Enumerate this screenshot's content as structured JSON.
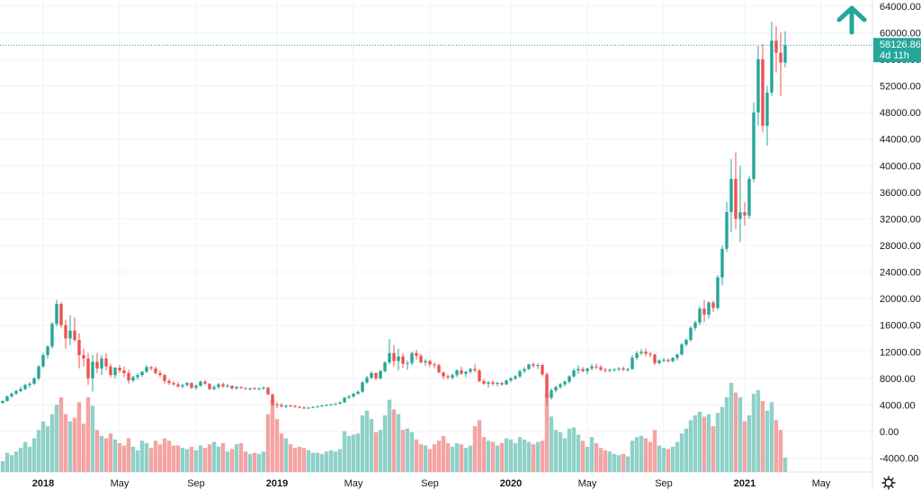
{
  "chart_data": {
    "type": "candlestick",
    "colors": {
      "up": "#26a69a",
      "down": "#ef5350",
      "volume_up": "#8fd1c9",
      "volume_down": "#f5a3a3",
      "grid": "#f0f3fa",
      "axis_text": "#131722",
      "last_price_line": "#26a69a"
    },
    "grid": true,
    "y_axis": {
      "position": "right",
      "ylim": [
        -5000,
        66000
      ],
      "ticks": [
        "64000.00",
        "60000.00",
        "56000.00",
        "52000.00",
        "48000.00",
        "44000.00",
        "40000.00",
        "36000.00",
        "32000.00",
        "28000.00",
        "24000.00",
        "20000.00",
        "16000.00",
        "12000.00",
        "8000.00",
        "4000.00",
        "0.00",
        "-4000.00"
      ]
    },
    "x_axis": {
      "ticks": [
        {
          "label": "2018",
          "index": 9,
          "bold": true
        },
        {
          "label": "May",
          "index": 26,
          "bold": false
        },
        {
          "label": "Sep",
          "index": 43,
          "bold": false
        },
        {
          "label": "2019",
          "index": 61,
          "bold": true
        },
        {
          "label": "May",
          "index": 78,
          "bold": false
        },
        {
          "label": "Sep",
          "index": 95,
          "bold": false
        },
        {
          "label": "2020",
          "index": 113,
          "bold": true
        },
        {
          "label": "May",
          "index": 130,
          "bold": false
        },
        {
          "label": "Sep",
          "index": 147,
          "bold": false
        },
        {
          "label": "2021",
          "index": 165,
          "bold": true
        },
        {
          "label": "May",
          "index": 182,
          "bold": false
        }
      ]
    },
    "last_price": {
      "value": 58126.86,
      "label": "58126.86",
      "countdown": "4d 11h"
    },
    "candles": [
      [
        4300,
        4700,
        4200,
        4600,
        900
      ],
      [
        4600,
        5400,
        4500,
        5300,
        1600
      ],
      [
        5300,
        5900,
        5100,
        5700,
        1400
      ],
      [
        5700,
        6300,
        5500,
        6100,
        1700
      ],
      [
        6100,
        6800,
        5900,
        6400,
        2000
      ],
      [
        6400,
        7200,
        6200,
        7000,
        2500
      ],
      [
        7000,
        7400,
        6600,
        7200,
        2100
      ],
      [
        7200,
        8200,
        7000,
        8000,
        2800
      ],
      [
        8000,
        10000,
        7700,
        9800,
        3500
      ],
      [
        9800,
        11800,
        9500,
        11500,
        4200
      ],
      [
        11500,
        13000,
        11000,
        12800,
        3800
      ],
      [
        12800,
        16500,
        12500,
        16200,
        4800
      ],
      [
        16200,
        19800,
        15800,
        19200,
        5600
      ],
      [
        19200,
        19500,
        15600,
        16000,
        6200
      ],
      [
        16000,
        16800,
        12500,
        14000,
        4800
      ],
      [
        14000,
        17500,
        13000,
        15200,
        4200
      ],
      [
        15200,
        17200,
        13500,
        13800,
        4500
      ],
      [
        13800,
        14800,
        9500,
        11500,
        5800
      ],
      [
        11500,
        12500,
        9800,
        11000,
        4000
      ],
      [
        11000,
        11800,
        7000,
        8000,
        6200
      ],
      [
        8000,
        11500,
        6000,
        10500,
        5500
      ],
      [
        10500,
        11800,
        8800,
        9500,
        3500
      ],
      [
        9500,
        11500,
        8500,
        11000,
        3000
      ],
      [
        11000,
        11800,
        9200,
        9800,
        2800
      ],
      [
        9800,
        10200,
        8200,
        8500,
        3200
      ],
      [
        8500,
        9700,
        8000,
        9600,
        2700
      ],
      [
        9600,
        10000,
        8800,
        9200,
        2400
      ],
      [
        9200,
        9800,
        8200,
        8800,
        2200
      ],
      [
        8800,
        9300,
        7200,
        7700,
        2800
      ],
      [
        7700,
        8400,
        7400,
        8200,
        2100
      ],
      [
        8200,
        8800,
        7800,
        8500,
        1800
      ],
      [
        8500,
        9100,
        8200,
        9000,
        2600
      ],
      [
        9000,
        10000,
        8800,
        9700,
        2400
      ],
      [
        9700,
        9900,
        9200,
        9500,
        2000
      ],
      [
        9500,
        9800,
        8600,
        8800,
        2600
      ],
      [
        8800,
        9200,
        8200,
        8500,
        2300
      ],
      [
        8500,
        8700,
        7200,
        7600,
        2800
      ],
      [
        7600,
        7900,
        7000,
        7300,
        2600
      ],
      [
        7300,
        7600,
        6900,
        7100,
        2200
      ],
      [
        7100,
        7500,
        6600,
        6800,
        2200
      ],
      [
        6800,
        7200,
        6500,
        7000,
        2000
      ],
      [
        7000,
        7500,
        6800,
        7300,
        1900
      ],
      [
        7300,
        7400,
        6400,
        6600,
        2100
      ],
      [
        6600,
        7100,
        6300,
        6900,
        1800
      ],
      [
        6900,
        7700,
        6700,
        7500,
        2200
      ],
      [
        7500,
        7800,
        7000,
        7200,
        2000
      ],
      [
        7200,
        7300,
        6200,
        6400,
        2300
      ],
      [
        6400,
        7000,
        6200,
        6700,
        2500
      ],
      [
        6700,
        7300,
        6400,
        7100,
        2100
      ],
      [
        7100,
        7400,
        6600,
        6800,
        2400
      ],
      [
        6800,
        7200,
        6600,
        6900,
        1700
      ],
      [
        6900,
        7000,
        6300,
        6500,
        1900
      ],
      [
        6500,
        6900,
        6300,
        6700,
        2300
      ],
      [
        6700,
        6800,
        6400,
        6550,
        2400
      ],
      [
        6550,
        6700,
        6300,
        6450,
        1700
      ],
      [
        6450,
        6600,
        6200,
        6500,
        1500
      ],
      [
        6500,
        6700,
        6300,
        6400,
        1600
      ],
      [
        6400,
        6600,
        6200,
        6500,
        1500
      ],
      [
        6500,
        6800,
        6300,
        6600,
        1700
      ],
      [
        6600,
        6700,
        5500,
        5600,
        4800
      ],
      [
        5600,
        5700,
        3800,
        4100,
        6000
      ],
      [
        4100,
        4400,
        3500,
        4000,
        4400
      ],
      [
        4000,
        4300,
        3600,
        3800,
        3200
      ],
      [
        3800,
        4100,
        3500,
        3900,
        2800
      ],
      [
        3900,
        4100,
        3700,
        3850,
        2300
      ],
      [
        3850,
        4000,
        3600,
        3700,
        2000
      ],
      [
        3700,
        3900,
        3500,
        3600,
        2100
      ],
      [
        3600,
        3800,
        3400,
        3500,
        2000
      ],
      [
        3500,
        3700,
        3400,
        3600,
        1800
      ],
      [
        3600,
        3800,
        3500,
        3700,
        1600
      ],
      [
        3700,
        3900,
        3600,
        3800,
        1600
      ],
      [
        3800,
        4000,
        3700,
        3950,
        1500
      ],
      [
        3950,
        4100,
        3800,
        4050,
        1700
      ],
      [
        4050,
        4200,
        3900,
        4100,
        1800
      ],
      [
        4100,
        4300,
        4000,
        4200,
        1700
      ],
      [
        4200,
        4500,
        4100,
        4400,
        1900
      ],
      [
        4400,
        5200,
        4300,
        5100,
        3400
      ],
      [
        5100,
        5500,
        4900,
        5300,
        3000
      ],
      [
        5300,
        5800,
        5100,
        5700,
        3100
      ],
      [
        5700,
        6200,
        5500,
        6000,
        3200
      ],
      [
        6000,
        7600,
        5800,
        7400,
        4700
      ],
      [
        7400,
        8400,
        7200,
        8100,
        5100
      ],
      [
        8100,
        9100,
        7900,
        8800,
        4400
      ],
      [
        8800,
        8900,
        7700,
        8000,
        3300
      ],
      [
        8000,
        9300,
        7800,
        9100,
        3500
      ],
      [
        9100,
        10600,
        8900,
        10400,
        4700
      ],
      [
        10400,
        13900,
        10100,
        11800,
        6000
      ],
      [
        11800,
        13000,
        9800,
        10600,
        5200
      ],
      [
        10600,
        12500,
        9200,
        11300,
        4800
      ],
      [
        11300,
        11800,
        9600,
        10200,
        3500
      ],
      [
        10200,
        10700,
        9300,
        10300,
        3600
      ],
      [
        10300,
        12000,
        10000,
        11800,
        3300
      ],
      [
        11800,
        12300,
        10800,
        11400,
        2700
      ],
      [
        11400,
        11700,
        10200,
        10400,
        2300
      ],
      [
        10400,
        10900,
        9900,
        10600,
        2200
      ],
      [
        10600,
        10800,
        9700,
        10100,
        1900
      ],
      [
        10100,
        10400,
        9500,
        10000,
        2300
      ],
      [
        10000,
        10200,
        8800,
        8900,
        2600
      ],
      [
        8900,
        9000,
        7900,
        8300,
        3000
      ],
      [
        8300,
        8600,
        7900,
        8100,
        2400
      ],
      [
        8100,
        8700,
        7800,
        8500,
        2100
      ],
      [
        8500,
        9400,
        8200,
        9200,
        2400
      ],
      [
        9200,
        9800,
        8500,
        8700,
        2300
      ],
      [
        8700,
        9100,
        8200,
        9000,
        2000
      ],
      [
        9000,
        9600,
        8700,
        9400,
        2200
      ],
      [
        9400,
        10200,
        8900,
        9200,
        3800
      ],
      [
        9200,
        9400,
        7400,
        7600,
        4300
      ],
      [
        7600,
        7900,
        7000,
        7200,
        2900
      ],
      [
        7200,
        7600,
        6600,
        7400,
        2600
      ],
      [
        7400,
        7700,
        6900,
        7200,
        2500
      ],
      [
        7200,
        7500,
        6800,
        7300,
        2200
      ],
      [
        7300,
        7500,
        6900,
        7100,
        2400
      ],
      [
        7100,
        7800,
        7000,
        7700,
        2800
      ],
      [
        7700,
        8200,
        7400,
        8000,
        2700
      ],
      [
        8000,
        8500,
        7700,
        8300,
        2400
      ],
      [
        8300,
        9300,
        8100,
        9100,
        2900
      ],
      [
        9100,
        9700,
        8800,
        9400,
        2700
      ],
      [
        9400,
        10200,
        9300,
        10100,
        2500
      ],
      [
        10100,
        10400,
        9600,
        9900,
        2300
      ],
      [
        9900,
        10300,
        9400,
        10000,
        2500
      ],
      [
        10000,
        10200,
        8300,
        8600,
        2600
      ],
      [
        8600,
        8900,
        3900,
        5100,
        6500
      ],
      [
        5100,
        6500,
        4800,
        6200,
        4600
      ],
      [
        6200,
        6900,
        5900,
        6700,
        3500
      ],
      [
        6700,
        7300,
        6400,
        7100,
        3300
      ],
      [
        7100,
        7700,
        6800,
        7500,
        2800
      ],
      [
        7500,
        8500,
        7200,
        8300,
        3600
      ],
      [
        8300,
        9500,
        8100,
        9200,
        3700
      ],
      [
        9200,
        10000,
        8700,
        9400,
        3100
      ],
      [
        9400,
        9700,
        8900,
        9100,
        2600
      ],
      [
        9100,
        9600,
        8600,
        9500,
        2100
      ],
      [
        9500,
        10200,
        9200,
        9800,
        2900
      ],
      [
        9800,
        10200,
        9400,
        9700,
        2400
      ],
      [
        9700,
        10000,
        9100,
        9300,
        2000
      ],
      [
        9300,
        9600,
        8900,
        9200,
        1800
      ],
      [
        9200,
        9500,
        8900,
        9300,
        1700
      ],
      [
        9300,
        9500,
        9000,
        9400,
        1500
      ],
      [
        9400,
        9700,
        9100,
        9500,
        1400
      ],
      [
        9500,
        9800,
        9100,
        9300,
        1500
      ],
      [
        9300,
        9600,
        9000,
        9400,
        1300
      ],
      [
        9400,
        11500,
        9300,
        11100,
        2600
      ],
      [
        11100,
        12100,
        10800,
        11800,
        2900
      ],
      [
        11800,
        12400,
        11500,
        12000,
        3000
      ],
      [
        12000,
        12500,
        11300,
        11700,
        2800
      ],
      [
        11700,
        12000,
        11200,
        11600,
        2500
      ],
      [
        11600,
        11700,
        10000,
        10300,
        3500
      ],
      [
        10300,
        10900,
        10100,
        10700,
        2200
      ],
      [
        10700,
        11100,
        10400,
        10800,
        2000
      ],
      [
        10800,
        11000,
        10400,
        10600,
        1900
      ],
      [
        10600,
        11200,
        10400,
        11100,
        2100
      ],
      [
        11100,
        11700,
        10700,
        11600,
        2500
      ],
      [
        11600,
        13300,
        11400,
        13100,
        3200
      ],
      [
        13100,
        14000,
        12800,
        13800,
        3600
      ],
      [
        13800,
        15900,
        13500,
        15600,
        4300
      ],
      [
        15600,
        16700,
        15200,
        16400,
        4700
      ],
      [
        16400,
        18800,
        16000,
        18500,
        5000
      ],
      [
        18500,
        19800,
        16500,
        17600,
        4600
      ],
      [
        17600,
        19600,
        17000,
        19400,
        4800
      ],
      [
        19400,
        19700,
        18000,
        18600,
        3800
      ],
      [
        18600,
        23500,
        18300,
        23200,
        4900
      ],
      [
        23200,
        28000,
        22000,
        27500,
        5400
      ],
      [
        27500,
        34500,
        27000,
        33000,
        6200
      ],
      [
        33000,
        41000,
        30000,
        38000,
        7400
      ],
      [
        38000,
        42000,
        30500,
        32000,
        6600
      ],
      [
        32000,
        40000,
        28500,
        33000,
        6200
      ],
      [
        33000,
        34500,
        31000,
        32500,
        4200
      ],
      [
        32500,
        38500,
        32000,
        38000,
        4700
      ],
      [
        38000,
        49500,
        37500,
        48000,
        6500
      ],
      [
        48000,
        58000,
        46000,
        56000,
        6800
      ],
      [
        56000,
        58300,
        45000,
        46000,
        5900
      ],
      [
        46000,
        52000,
        43000,
        51000,
        5100
      ],
      [
        51000,
        61600,
        50500,
        58800,
        5800
      ],
      [
        58800,
        61000,
        54000,
        57000,
        4300
      ],
      [
        57000,
        60000,
        50500,
        55500,
        3500
      ],
      [
        55500,
        60200,
        54800,
        58127,
        1200
      ]
    ]
  }
}
